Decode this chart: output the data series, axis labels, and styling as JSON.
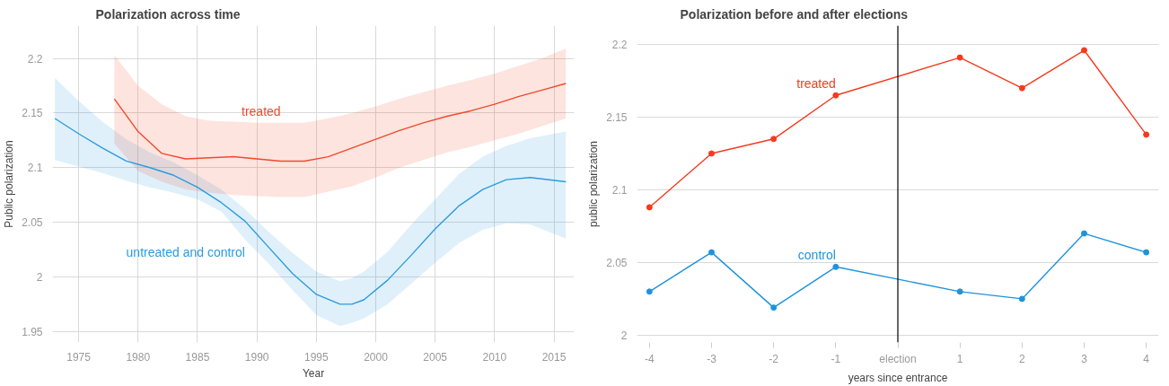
{
  "chart_data": [
    {
      "type": "line",
      "title": "Polarization across time",
      "xlabel": "Year",
      "ylabel": "Public polarization",
      "xlim": [
        1972.8,
        2016.7
      ],
      "xticks": [
        1975,
        1980,
        1985,
        1990,
        1995,
        2000,
        2005,
        2010,
        2015
      ],
      "ylim": [
        1.94,
        2.23
      ],
      "yticks": [
        1.95,
        2,
        2.05,
        2.1,
        2.15,
        2.2
      ],
      "grid": true,
      "series": [
        {
          "name": "untreated and control",
          "color": "#2b9be0",
          "x": [
            1973,
            1975,
            1977,
            1979,
            1981,
            1983,
            1985,
            1987,
            1989,
            1991,
            1993,
            1995,
            1997,
            1998,
            1999,
            2001,
            2003,
            2005,
            2007,
            2009,
            2011,
            2013,
            2016
          ],
          "values": [
            2.145,
            2.131,
            2.118,
            2.106,
            2.1,
            2.093,
            2.082,
            2.068,
            2.051,
            2.027,
            2.003,
            1.984,
            1.975,
            1.975,
            1.979,
            1.997,
            2.02,
            2.044,
            2.065,
            2.08,
            2.089,
            2.091,
            2.087
          ],
          "lower": [
            2.107,
            2.101,
            2.095,
            2.088,
            2.082,
            2.077,
            2.071,
            2.06,
            2.034,
            2.012,
            1.988,
            1.965,
            1.955,
            1.958,
            1.962,
            1.975,
            1.994,
            2.013,
            2.031,
            2.043,
            2.049,
            2.048,
            2.035
          ],
          "upper": [
            2.182,
            2.161,
            2.142,
            2.126,
            2.114,
            2.105,
            2.093,
            2.08,
            2.062,
            2.041,
            2.022,
            2.005,
            1.996,
            1.999,
            2.005,
            2.023,
            2.048,
            2.071,
            2.094,
            2.11,
            2.12,
            2.127,
            2.133
          ]
        },
        {
          "name": "treated",
          "color": "#f04a2a",
          "x": [
            1978,
            1980,
            1982,
            1984,
            1986,
            1988,
            1990,
            1992,
            1994,
            1996,
            1998,
            2000,
            2002,
            2004,
            2006,
            2008,
            2010,
            2012,
            2014,
            2016
          ],
          "values": [
            2.163,
            2.133,
            2.113,
            2.108,
            2.109,
            2.11,
            2.108,
            2.106,
            2.106,
            2.11,
            2.118,
            2.126,
            2.134,
            2.141,
            2.147,
            2.152,
            2.158,
            2.165,
            2.171,
            2.177
          ],
          "lower": [
            2.122,
            2.097,
            2.087,
            2.08,
            2.077,
            2.075,
            2.074,
            2.073,
            2.073,
            2.078,
            2.083,
            2.091,
            2.1,
            2.107,
            2.114,
            2.119,
            2.125,
            2.131,
            2.138,
            2.145
          ],
          "upper": [
            2.203,
            2.175,
            2.158,
            2.147,
            2.143,
            2.142,
            2.141,
            2.141,
            2.141,
            2.145,
            2.15,
            2.156,
            2.163,
            2.169,
            2.175,
            2.18,
            2.186,
            2.193,
            2.2,
            2.209
          ]
        }
      ]
    },
    {
      "type": "line",
      "title": "Polarization before and after elections",
      "xlabel": "years since entrance",
      "ylabel": "public polarization",
      "xlim": [
        -4.2,
        4.2
      ],
      "xticks": [
        -4,
        -3,
        -2,
        -1,
        {
          "value": 0,
          "label": "election"
        },
        1,
        2,
        3,
        4
      ],
      "ylim": [
        1.995,
        2.213
      ],
      "yticks": [
        2,
        2.05,
        2.1,
        2.15,
        2.2
      ],
      "grid": "y",
      "marker": "circle",
      "x": [
        -4,
        -3,
        -2,
        -1,
        1,
        2,
        3,
        4
      ],
      "series": [
        {
          "name": "treated",
          "color": "#f53a1e",
          "values": [
            2.088,
            2.125,
            2.135,
            2.165,
            2.191,
            2.17,
            2.196,
            2.138
          ]
        },
        {
          "name": "control",
          "color": "#1e93dc",
          "values": [
            2.03,
            2.057,
            2.019,
            2.047,
            2.03,
            2.025,
            2.07,
            2.057
          ]
        }
      ],
      "ref_lines": [
        {
          "axis": "x",
          "value": 0,
          "color": "#000000"
        }
      ]
    }
  ]
}
